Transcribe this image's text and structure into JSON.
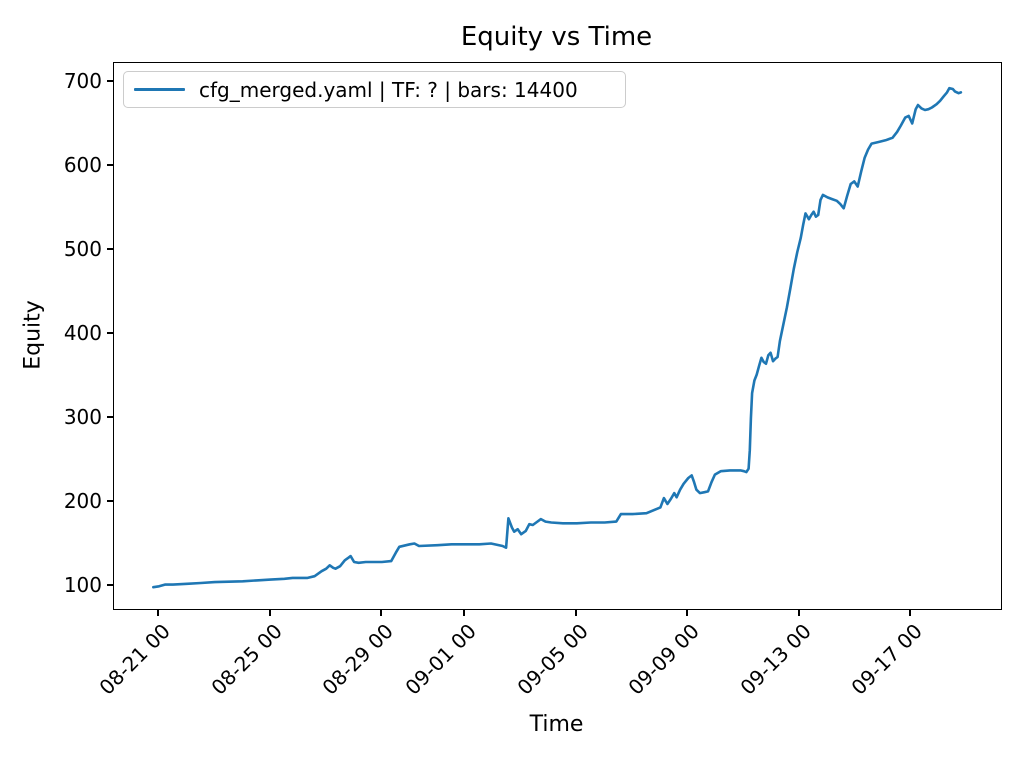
{
  "chart_data": {
    "type": "line",
    "title": "Equity vs Time",
    "xlabel": "Time",
    "ylabel": "Equity",
    "legend_label": "cfg_merged.yaml | TF: ? | bars: 14400",
    "legend_position": "upper left",
    "grid": false,
    "line_color": "#1f77b4",
    "axis_color": "#000000",
    "yticks": [
      100,
      200,
      300,
      400,
      500,
      600,
      700
    ],
    "xtick_labels": [
      "08-21 00",
      "08-25 00",
      "08-29 00",
      "09-01 00",
      "09-05 00",
      "09-09 00",
      "09-13 00",
      "09-17 00"
    ],
    "ylim": [
      73,
      723
    ],
    "xlim_days": [
      -1.62,
      30.23
    ],
    "series": [
      {
        "name": "cfg_merged.yaml | TF: ? | bars: 14400",
        "points": [
          [
            "08-20 19",
            99
          ],
          [
            "08-21 00",
            100
          ],
          [
            "08-21 05",
            102
          ],
          [
            "08-21 12",
            102
          ],
          [
            "08-22 00",
            103
          ],
          [
            "08-22 12",
            104
          ],
          [
            "08-23 00",
            105
          ],
          [
            "08-24 00",
            106
          ],
          [
            "08-24 12",
            107
          ],
          [
            "08-25 00",
            108
          ],
          [
            "08-25 12",
            109
          ],
          [
            "08-25 19",
            110
          ],
          [
            "08-26 08",
            110
          ],
          [
            "08-26 14",
            112
          ],
          [
            "08-26 20",
            118
          ],
          [
            "08-27 00",
            121
          ],
          [
            "08-27 03",
            125
          ],
          [
            "08-27 06",
            122
          ],
          [
            "08-27 08",
            121
          ],
          [
            "08-27 12",
            124
          ],
          [
            "08-27 16",
            131
          ],
          [
            "08-27 19",
            134
          ],
          [
            "08-27 21",
            136
          ],
          [
            "08-28 00",
            129
          ],
          [
            "08-28 04",
            128
          ],
          [
            "08-28 10",
            129
          ],
          [
            "08-29 00",
            129
          ],
          [
            "08-29 08",
            130
          ],
          [
            "08-29 12",
            140
          ],
          [
            "08-29 15",
            147
          ],
          [
            "08-30 00",
            150
          ],
          [
            "08-30 04",
            151
          ],
          [
            "08-30 08",
            148
          ],
          [
            "08-31 00",
            149
          ],
          [
            "08-31 12",
            150
          ],
          [
            "09-01 00",
            150
          ],
          [
            "09-01 12",
            150
          ],
          [
            "09-01 22",
            151
          ],
          [
            "09-02 08",
            148
          ],
          [
            "09-02 11",
            146
          ],
          [
            "09-02 13",
            181
          ],
          [
            "09-02 16",
            170
          ],
          [
            "09-02 18",
            165
          ],
          [
            "09-02 21",
            168
          ],
          [
            "09-03 00",
            162
          ],
          [
            "09-03 04",
            166
          ],
          [
            "09-03 07",
            174
          ],
          [
            "09-03 10",
            173
          ],
          [
            "09-03 13",
            176
          ],
          [
            "09-03 17",
            180
          ],
          [
            "09-03 21",
            177
          ],
          [
            "09-04 02",
            176
          ],
          [
            "09-04 12",
            175
          ],
          [
            "09-05 00",
            175
          ],
          [
            "09-05 12",
            176
          ],
          [
            "09-06 00",
            176
          ],
          [
            "09-06 10",
            177
          ],
          [
            "09-06 14",
            186
          ],
          [
            "09-07 00",
            186
          ],
          [
            "09-07 12",
            187
          ],
          [
            "09-08 00",
            194
          ],
          [
            "09-08 03",
            205
          ],
          [
            "09-08 06",
            198
          ],
          [
            "09-08 09",
            204
          ],
          [
            "09-08 12",
            211
          ],
          [
            "09-08 14",
            206
          ],
          [
            "09-08 17",
            215
          ],
          [
            "09-08 20",
            222
          ],
          [
            "09-09 00",
            229
          ],
          [
            "09-09 03",
            232
          ],
          [
            "09-09 05",
            224
          ],
          [
            "09-09 07",
            215
          ],
          [
            "09-09 10",
            211
          ],
          [
            "09-09 14",
            212
          ],
          [
            "09-09 17",
            213
          ],
          [
            "09-09 20",
            224
          ],
          [
            "09-09 23",
            233
          ],
          [
            "09-10 04",
            237
          ],
          [
            "09-10 12",
            238
          ],
          [
            "09-10 21",
            238
          ],
          [
            "09-11 00",
            237
          ],
          [
            "09-11 02",
            236
          ],
          [
            "09-11 04",
            240
          ],
          [
            "09-11 05",
            262
          ],
          [
            "09-11 06",
            300
          ],
          [
            "09-11 07",
            330
          ],
          [
            "09-11 09",
            345
          ],
          [
            "09-11 11",
            352
          ],
          [
            "09-11 13",
            362
          ],
          [
            "09-11 15",
            372
          ],
          [
            "09-11 17",
            367
          ],
          [
            "09-11 19",
            365
          ],
          [
            "09-11 21",
            375
          ],
          [
            "09-11 23",
            378
          ],
          [
            "09-12 01",
            368
          ],
          [
            "09-12 03",
            371
          ],
          [
            "09-12 05",
            373
          ],
          [
            "09-12 07",
            392
          ],
          [
            "09-12 10",
            412
          ],
          [
            "09-12 13",
            432
          ],
          [
            "09-12 16",
            455
          ],
          [
            "09-12 19",
            478
          ],
          [
            "09-12 22",
            498
          ],
          [
            "09-13 01",
            515
          ],
          [
            "09-13 03",
            530
          ],
          [
            "09-13 05",
            544
          ],
          [
            "09-13 08",
            537
          ],
          [
            "09-13 10",
            542
          ],
          [
            "09-13 12",
            546
          ],
          [
            "09-13 14",
            540
          ],
          [
            "09-13 16",
            542
          ],
          [
            "09-13 18",
            560
          ],
          [
            "09-13 20",
            566
          ],
          [
            "09-14 00",
            563
          ],
          [
            "09-14 04",
            561
          ],
          [
            "09-14 08",
            559
          ],
          [
            "09-14 11",
            555
          ],
          [
            "09-14 14",
            550
          ],
          [
            "09-14 17",
            565
          ],
          [
            "09-14 20",
            579
          ],
          [
            "09-14 23",
            582
          ],
          [
            "09-15 02",
            576
          ],
          [
            "09-15 05",
            594
          ],
          [
            "09-15 08",
            610
          ],
          [
            "09-15 11",
            620
          ],
          [
            "09-15 14",
            627
          ],
          [
            "09-15 20",
            629
          ],
          [
            "09-16 02",
            631
          ],
          [
            "09-16 08",
            634
          ],
          [
            "09-16 12",
            641
          ],
          [
            "09-16 15",
            648
          ],
          [
            "09-16 19",
            658
          ],
          [
            "09-16 22",
            660
          ],
          [
            "09-17 01",
            651
          ],
          [
            "09-17 04",
            668
          ],
          [
            "09-17 06",
            673
          ],
          [
            "09-17 09",
            669
          ],
          [
            "09-17 12",
            667
          ],
          [
            "09-17 15",
            668
          ],
          [
            "09-17 18",
            670
          ],
          [
            "09-17 22",
            674
          ],
          [
            "09-18 01",
            678
          ],
          [
            "09-18 04",
            683
          ],
          [
            "09-18 07",
            688
          ],
          [
            "09-18 09",
            693
          ],
          [
            "09-18 12",
            692
          ],
          [
            "09-18 14",
            689
          ],
          [
            "09-18 17",
            687
          ],
          [
            "09-18 19",
            688
          ]
        ]
      }
    ]
  }
}
